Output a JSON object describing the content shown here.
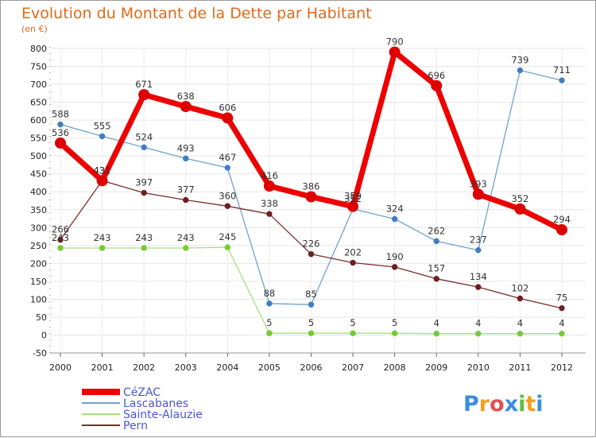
{
  "chart_data": {
    "type": "line",
    "title": "Evolution du Montant de la Dette par Habitant",
    "subtitle": "(en €)",
    "xlabel": "",
    "ylabel": "",
    "categories": [
      "2000",
      "2001",
      "2002",
      "2003",
      "2004",
      "2005",
      "2006",
      "2007",
      "2008",
      "2009",
      "2010",
      "2011",
      "2012"
    ],
    "ylim": [
      -50,
      800
    ],
    "yticks": [
      -50,
      0,
      50,
      100,
      150,
      200,
      250,
      300,
      350,
      400,
      450,
      500,
      550,
      600,
      650,
      700,
      750,
      800
    ],
    "grid": true,
    "legend_position": "bottom-left",
    "series": [
      {
        "name": "CéZAC",
        "color": "#ee0000",
        "values": [
          536,
          431,
          671,
          638,
          606,
          416,
          386,
          359,
          790,
          696,
          393,
          352,
          294
        ],
        "line_width": 7,
        "marker_radius": 6.5,
        "marker_fill": "#dd0000"
      },
      {
        "name": "Lascabanes",
        "color": "#6fa3cf",
        "values": [
          588,
          555,
          524,
          493,
          467,
          88,
          85,
          352,
          324,
          262,
          237,
          739,
          711
        ],
        "line_width": 1.3,
        "marker_radius": 3.2,
        "marker_fill": "#3f7fc0"
      },
      {
        "name": "Sainte-Alauzie",
        "color": "#a8e07a",
        "values": [
          243,
          243,
          243,
          243,
          245,
          5,
          5,
          5,
          5,
          4,
          4,
          4,
          4
        ],
        "line_width": 1.3,
        "marker_radius": 3.2,
        "marker_fill": "#74cc30"
      },
      {
        "name": "Pern",
        "color": "#7a2d2d",
        "values": [
          266,
          431,
          397,
          377,
          360,
          338,
          226,
          202,
          190,
          157,
          134,
          102,
          75
        ],
        "line_width": 1.3,
        "marker_radius": 3.2,
        "marker_fill": "#6e1f1f"
      }
    ]
  },
  "logo": {
    "letters": [
      "P",
      "r",
      "o",
      "x",
      "i",
      "t",
      "i"
    ],
    "colors": [
      "#3b8de0",
      "#f0a020",
      "#e05050",
      "#3b8de0",
      "#5bbf3a",
      "#f0a020",
      "#3b8de0"
    ]
  }
}
